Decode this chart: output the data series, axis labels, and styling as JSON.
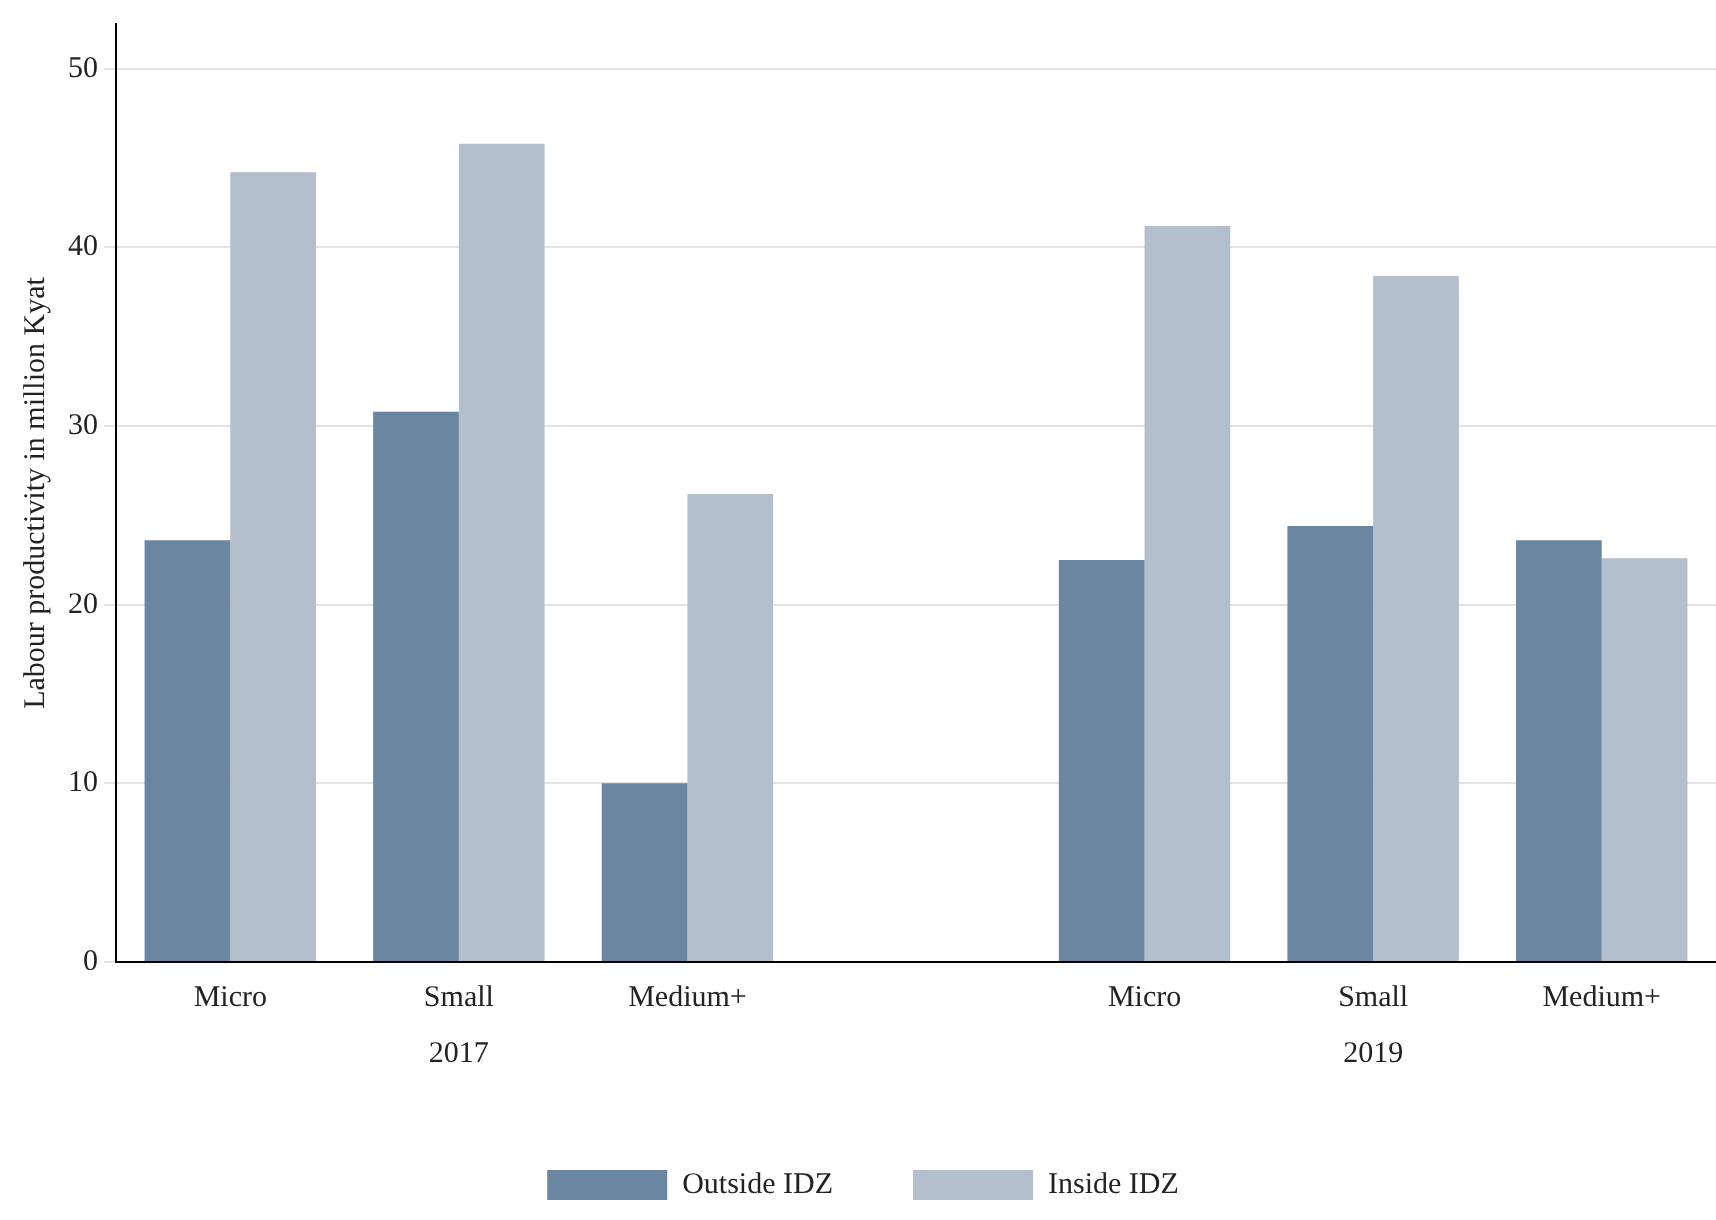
{
  "chart_data": {
    "type": "bar",
    "ylabel": "Labour productivity in million Kyat",
    "categories": [
      "Micro",
      "Small",
      "Medium+",
      null,
      "Micro",
      "Small",
      "Medium+"
    ],
    "series": [
      {
        "name": "Outside IDZ",
        "color": "#6b86a0",
        "values": [
          23.6,
          30.8,
          10.0,
          null,
          22.5,
          24.4,
          23.6
        ]
      },
      {
        "name": "Inside IDZ",
        "color": "#b3bfcc",
        "values": [
          44.2,
          45.8,
          26.2,
          null,
          41.2,
          38.4,
          22.6
        ]
      }
    ],
    "annotations": [
      "2017",
      "2019"
    ],
    "ylim": [
      0,
      52.5
    ],
    "yticks": [
      0,
      10,
      20,
      30,
      40,
      50
    ],
    "grid": "y",
    "legend": "bottom"
  }
}
